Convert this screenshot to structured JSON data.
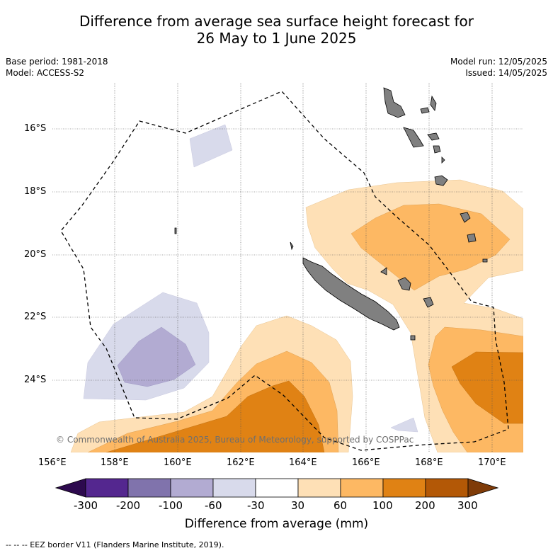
{
  "title": {
    "line1": "Difference from average sea surface height forecast for",
    "line2": "26 May to 1 June 2025"
  },
  "meta": {
    "base_period": "Base period: 1981-2018",
    "model": "Model: ACCESS-S2",
    "model_run": "Model run: 12/05/2025",
    "issued": "Issued: 14/05/2025"
  },
  "axes": {
    "lat_labels": [
      "16°S",
      "18°S",
      "20°S",
      "22°S",
      "24°S"
    ],
    "lon_labels": [
      "156°E",
      "158°E",
      "160°E",
      "162°E",
      "164°E",
      "166°E",
      "168°E",
      "170°E"
    ]
  },
  "copyright": "© Commonwealth of Australia 2025, Bureau of Meteorology, supported by COSPPac",
  "colorbar": {
    "ticks": [
      "-300",
      "-200",
      "-100",
      "-60",
      "-30",
      "30",
      "60",
      "100",
      "200",
      "300"
    ],
    "label": "Difference from average (mm)",
    "colors": {
      "below_min": "#2d0a4e",
      "c1": "#54278f",
      "c2": "#8073ac",
      "c3": "#b2abd2",
      "c4": "#d8daeb",
      "c5": "#ffffff",
      "c6": "#fee0b6",
      "c7": "#fdb863",
      "c8": "#e08214",
      "c9": "#b35806",
      "above_max": "#7f3b08"
    }
  },
  "legend_footer": "--  --  -- EEZ border V11 (Flanders Marine Institute, 2019).",
  "land_color": "#808080"
}
